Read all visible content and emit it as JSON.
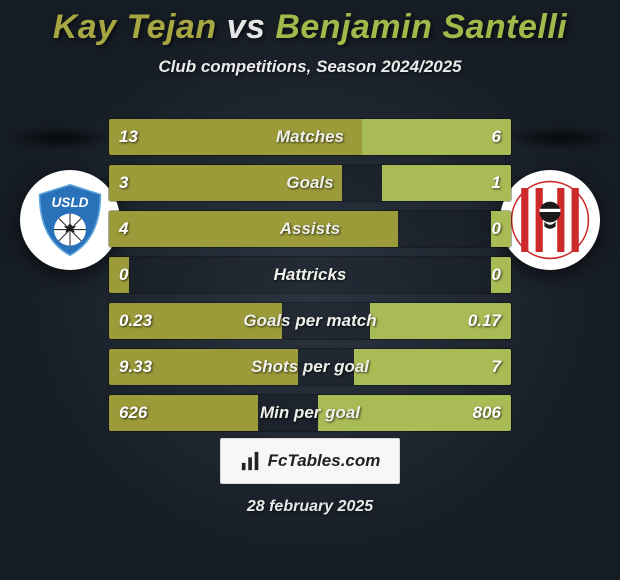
{
  "title": {
    "player1": "Kay Tejan",
    "vs": "vs",
    "player2": "Benjamin Santelli",
    "player1_color": "#a6a742",
    "vs_color": "#e6e6e6",
    "player2_color": "#a0b94a"
  },
  "subtitle": "Club competitions, Season 2024/2025",
  "colors": {
    "left_bar": "#9c9b3a",
    "right_bar": "#a9bb55",
    "background_start": "#2b3440",
    "background_end": "#161c24"
  },
  "badge_left": {
    "bg": "#ffffff",
    "shield_fill": "#2971b8",
    "text": "USLD",
    "text_color": "#ffffff"
  },
  "badge_right": {
    "bg": "#ffffff",
    "stripe_color": "#cc2a2a",
    "head_color": "#1a1a1a"
  },
  "rows": [
    {
      "label": "Matches",
      "left": "13",
      "right": "6",
      "left_pct": 63,
      "right_pct": 37
    },
    {
      "label": "Goals",
      "left": "3",
      "right": "1",
      "left_pct": 58,
      "right_pct": 32
    },
    {
      "label": "Assists",
      "left": "4",
      "right": "0",
      "left_pct": 72,
      "right_pct": 5
    },
    {
      "label": "Hattricks",
      "left": "0",
      "right": "0",
      "left_pct": 5,
      "right_pct": 5
    },
    {
      "label": "Goals per match",
      "left": "0.23",
      "right": "0.17",
      "left_pct": 43,
      "right_pct": 35
    },
    {
      "label": "Shots per goal",
      "left": "9.33",
      "right": "7",
      "left_pct": 47,
      "right_pct": 39
    },
    {
      "label": "Min per goal",
      "left": "626",
      "right": "806",
      "left_pct": 37,
      "right_pct": 48
    }
  ],
  "footer_brand": "FcTables.com",
  "footer_date": "28 february 2025"
}
